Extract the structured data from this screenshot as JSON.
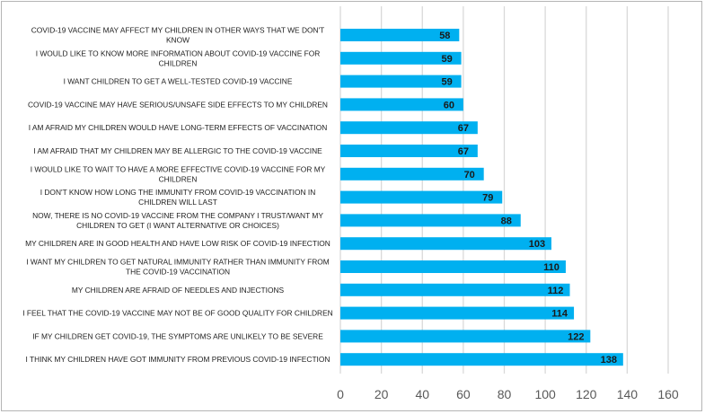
{
  "chart_data": {
    "type": "bar",
    "orientation": "horizontal",
    "title": "",
    "xlabel": "",
    "ylabel": "",
    "xlim": [
      0,
      160
    ],
    "x_ticks": [
      0,
      20,
      40,
      60,
      80,
      100,
      120,
      140,
      160
    ],
    "grid": "vertical",
    "legend": "none",
    "bar_color": "#00B0F0",
    "categories": [
      [
        "COVID-19 VACCINE MAY AFFECT MY CHILDREN IN OTHER WAYS THAT WE DON'T",
        "KNOW"
      ],
      [
        "I WOULD LIKE TO KNOW MORE INFORMATION ABOUT COVID-19 VACCINE FOR",
        "CHILDREN"
      ],
      [
        "I WANT CHILDREN TO GET A WELL-TESTED COVID-19 VACCINE"
      ],
      [
        "COVID-19 VACCINE MAY HAVE SERIOUS/UNSAFE SIDE EFFECTS TO MY CHILDREN"
      ],
      [
        "I AM AFRAID MY CHILDREN WOULD HAVE LONG-TERM EFFECTS OF VACCINATION"
      ],
      [
        "I AM AFRAID THAT MY CHILDREN MAY BE ALLERGIC TO THE COVID-19 VACCINE"
      ],
      [
        "I WOULD LIKE TO WAIT TO HAVE A MORE EFFECTIVE COVID-19 VACCINE FOR MY",
        "CHILDREN"
      ],
      [
        "I DON'T KNOW HOW LONG THE IMMUNITY FROM COVID-19 VACCINATION IN",
        "CHILDREN WILL LAST"
      ],
      [
        "NOW, THERE IS NO COVID-19 VACCINE FROM THE COMPANY I TRUST/WANT MY",
        "CHILDREN TO GET (I WANT ALTERNATIVE OR CHOICES)"
      ],
      [
        "MY CHILDREN ARE IN GOOD HEALTH AND HAVE LOW RISK OF COVID-19 INFECTION"
      ],
      [
        "I WANT MY CHILDREN TO GET NATURAL IMMUNITY RATHER THAN IMMUNITY FROM",
        "THE COVID-19 VACCINATION"
      ],
      [
        "MY CHILDREN ARE AFRAID OF NEEDLES AND INJECTIONS"
      ],
      [
        "I FEEL THAT THE COVID-19 VACCINE MAY NOT BE OF GOOD QUALITY FOR CHILDREN"
      ],
      [
        "IF MY CHILDREN GET COVID-19, THE SYMPTOMS ARE UNLIKELY TO BE SEVERE"
      ],
      [
        "I THINK MY CHILDREN HAVE GOT IMMUNITY FROM PREVIOUS COVID-19 INFECTION"
      ]
    ],
    "values": [
      58,
      59,
      59,
      60,
      67,
      67,
      70,
      79,
      88,
      103,
      110,
      112,
      114,
      122,
      138
    ]
  }
}
